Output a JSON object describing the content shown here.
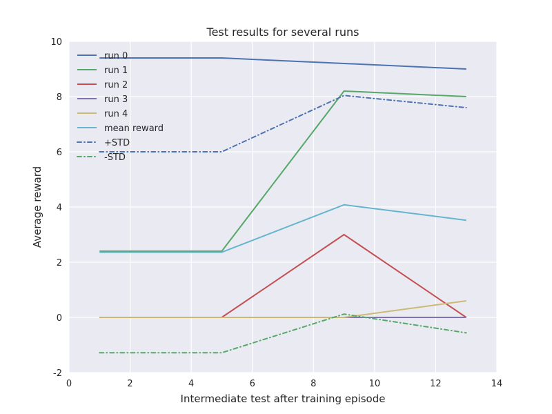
{
  "chart_data": {
    "type": "line",
    "title": "Test results for several runs",
    "xlabel": "Intermediate test after training episode",
    "ylabel": "Average reward",
    "xlim": [
      0,
      14
    ],
    "ylim": [
      -2,
      10
    ],
    "xticks": [
      0,
      2,
      4,
      6,
      8,
      10,
      12,
      14
    ],
    "yticks": [
      -2,
      0,
      2,
      4,
      6,
      8,
      10
    ],
    "grid": true,
    "legend_position": "top-left",
    "background_color": "#eaeaf2",
    "x": [
      1,
      5,
      9,
      13
    ],
    "series": [
      {
        "name": "run 0",
        "color": "#4c72b0",
        "style": "solid",
        "values": [
          9.4,
          9.4,
          9.2,
          9.0
        ]
      },
      {
        "name": "run 1",
        "color": "#55a868",
        "style": "solid",
        "values": [
          2.4,
          2.4,
          8.2,
          8.0
        ]
      },
      {
        "name": "run 2",
        "color": "#c44e52",
        "style": "solid",
        "values": [
          0.0,
          0.0,
          3.0,
          0.0
        ]
      },
      {
        "name": "run 3",
        "color": "#8172b2",
        "style": "solid",
        "values": [
          0.0,
          0.0,
          0.0,
          0.0
        ]
      },
      {
        "name": "run 4",
        "color": "#ccb974",
        "style": "solid",
        "values": [
          0.0,
          0.0,
          0.0,
          0.6
        ]
      },
      {
        "name": "mean reward",
        "color": "#64b5cd",
        "style": "solid",
        "values": [
          2.36,
          2.36,
          4.08,
          3.52
        ]
      },
      {
        "name": "+STD",
        "color": "#4c72b0",
        "style": "dashdot",
        "values": [
          6.0,
          6.0,
          8.04,
          7.6
        ]
      },
      {
        "name": "-STD",
        "color": "#55a868",
        "style": "dashdot",
        "values": [
          -1.28,
          -1.28,
          0.12,
          -0.56
        ]
      }
    ]
  }
}
